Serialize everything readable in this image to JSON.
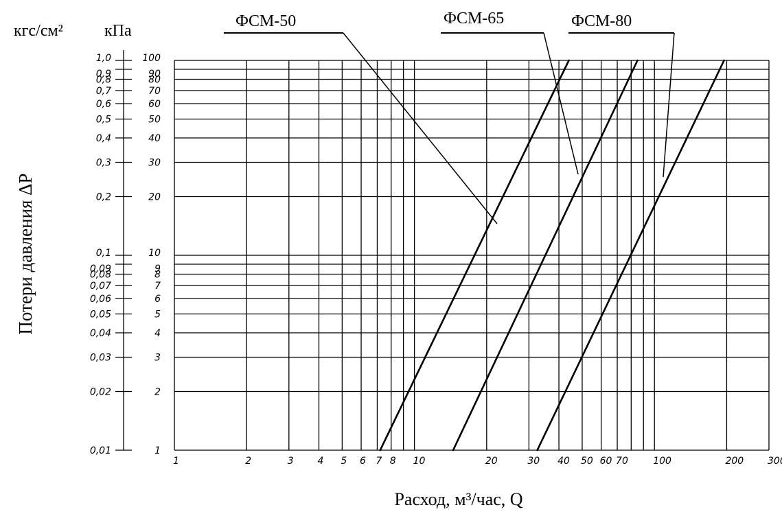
{
  "chart_data": {
    "type": "line",
    "title": "",
    "xlabel": "Расход, м³/час, Q",
    "ylabel": "Потери давления ΔР",
    "x_scale": "log",
    "y_scale": "log",
    "xlim": [
      1,
      300
    ],
    "ylim": [
      1,
      100
    ],
    "grid": true,
    "y_units": {
      "left": "кгс/см²",
      "right": "кПа"
    },
    "x_ticks": [
      {
        "value": 1,
        "label": "1"
      },
      {
        "value": 2,
        "label": "2"
      },
      {
        "value": 3,
        "label": "3"
      },
      {
        "value": 4,
        "label": "4"
      },
      {
        "value": 5,
        "label": "5"
      },
      {
        "value": 6,
        "label": "6"
      },
      {
        "value": 7,
        "label": "7"
      },
      {
        "value": 8,
        "label": "8"
      },
      {
        "value": 10,
        "label": "10"
      },
      {
        "value": 20,
        "label": "20"
      },
      {
        "value": 30,
        "label": "30"
      },
      {
        "value": 40,
        "label": "40"
      },
      {
        "value": 50,
        "label": "50"
      },
      {
        "value": 60,
        "label": "60"
      },
      {
        "value": 70,
        "label": "70"
      },
      {
        "value": 100,
        "label": "100"
      },
      {
        "value": 200,
        "label": "200"
      },
      {
        "value": 300,
        "label": "300"
      }
    ],
    "x_grid_values": [
      1,
      2,
      3,
      4,
      5,
      6,
      7,
      8,
      9,
      10,
      20,
      30,
      40,
      50,
      60,
      70,
      80,
      90,
      100,
      200,
      300
    ],
    "y_ticks": [
      {
        "value": 1,
        "kpa": "1",
        "kgf": "0,01"
      },
      {
        "value": 2,
        "kpa": "2",
        "kgf": "0,02"
      },
      {
        "value": 3,
        "kpa": "3",
        "kgf": "0,03"
      },
      {
        "value": 4,
        "kpa": "4",
        "kgf": "0,04"
      },
      {
        "value": 5,
        "kpa": "5",
        "kgf": "0,05"
      },
      {
        "value": 6,
        "kpa": "6",
        "kgf": "0,06"
      },
      {
        "value": 7,
        "kpa": "7",
        "kgf": "0,07"
      },
      {
        "value": 8,
        "kpa": "8",
        "kgf": "0,08"
      },
      {
        "value": 9,
        "kpa": "9",
        "kgf": "0,09"
      },
      {
        "value": 10,
        "kpa": "10",
        "kgf": "0,1"
      },
      {
        "value": 20,
        "kpa": "20",
        "kgf": "0,2"
      },
      {
        "value": 30,
        "kpa": "30",
        "kgf": "0,3"
      },
      {
        "value": 40,
        "kpa": "40",
        "kgf": "0,4"
      },
      {
        "value": 50,
        "kpa": "50",
        "kgf": "0,5"
      },
      {
        "value": 60,
        "kpa": "60",
        "kgf": "0,6"
      },
      {
        "value": 70,
        "kpa": "70",
        "kgf": "0,7"
      },
      {
        "value": 80,
        "kpa": "80",
        "kgf": "0,8"
      },
      {
        "value": 90,
        "kpa": "90",
        "kgf": "0,9"
      },
      {
        "value": 100,
        "kpa": "100",
        "kgf": "1,0"
      }
    ],
    "series": [
      {
        "name": "ФСМ-50",
        "points": [
          [
            7.2,
            1
          ],
          [
            44,
            100
          ]
        ]
      },
      {
        "name": "ФСМ-65",
        "points": [
          [
            14.5,
            1
          ],
          [
            85,
            100
          ]
        ]
      },
      {
        "name": "ФСМ-80",
        "points": [
          [
            32.5,
            1
          ],
          [
            195,
            100
          ]
        ]
      }
    ],
    "line_color": "#000000"
  }
}
